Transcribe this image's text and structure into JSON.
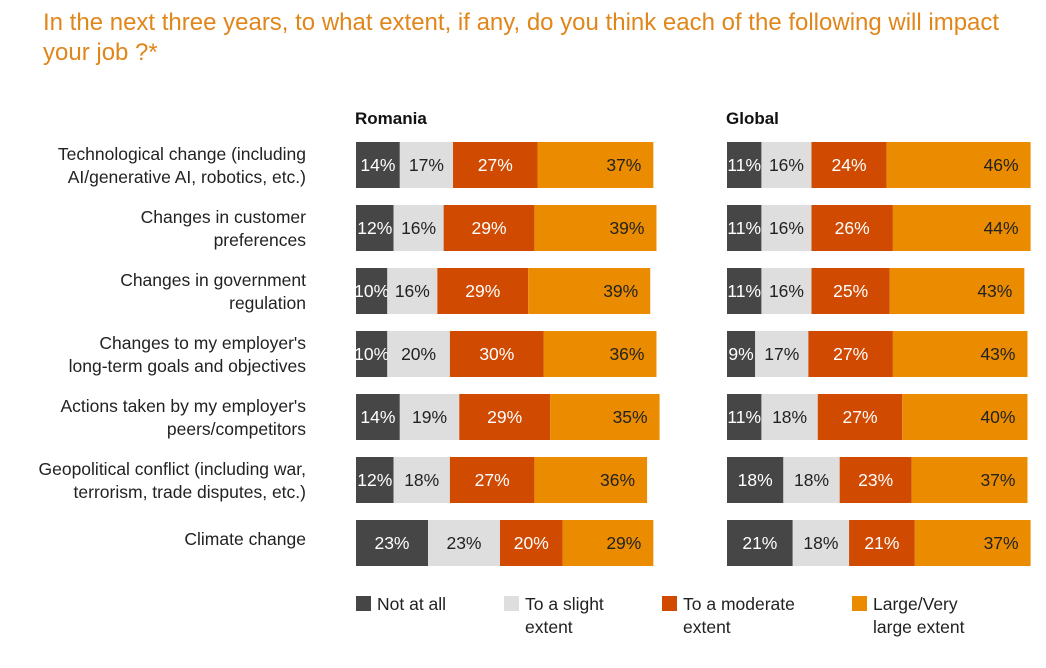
{
  "chart_data": {
    "type": "bar",
    "orientation": "horizontal-stacked",
    "title": "In the next three years, to what extent, if any, do you think each of the following will impact your job ?*",
    "categories": [
      "Technological change (including AI/generative AI, robotics, etc.)",
      "Changes in customer preferences",
      "Changes in government regulation",
      "Changes to my employer's long-term goals and objectives",
      "Actions taken by my employer's peers/competitors",
      "Geopolitical conflict (including war, terrorism, trade disputes, etc.)",
      "Climate change"
    ],
    "category_lines": [
      [
        "Technological change (including",
        "AI/generative AI, robotics, etc.)"
      ],
      [
        "Changes in customer",
        "preferences"
      ],
      [
        "Changes in government",
        "regulation"
      ],
      [
        "Changes to my employer's",
        "long-term goals and objectives"
      ],
      [
        "Actions taken by my employer's",
        "peers/competitors"
      ],
      [
        "Geopolitical conflict (including war,",
        "terrorism, trade disputes, etc.)"
      ],
      [
        "Climate change"
      ]
    ],
    "unit": "%",
    "legend": [
      {
        "name": "Not at all",
        "lines": [
          "Not at all"
        ],
        "color": "#464646",
        "text_color": "#ffffff"
      },
      {
        "name": "To a slight extent",
        "lines": [
          "To a slight",
          "extent"
        ],
        "color": "#dedede",
        "text_color": "#222222"
      },
      {
        "name": "To a moderate extent",
        "lines": [
          "To a moderate",
          "extent"
        ],
        "color": "#d04a02",
        "text_color": "#ffffff"
      },
      {
        "name": "Large/Very large extent",
        "lines": [
          "Large/Very",
          "large extent"
        ],
        "color": "#eb8c00",
        "text_color": "#222222"
      }
    ],
    "legend_position": "bottom",
    "panels": [
      {
        "name": "Romania",
        "series": [
          {
            "name": "Not at all",
            "values": [
              14,
              12,
              10,
              10,
              14,
              12,
              23
            ]
          },
          {
            "name": "To a slight extent",
            "values": [
              17,
              16,
              16,
              20,
              19,
              18,
              23
            ]
          },
          {
            "name": "To a moderate extent",
            "values": [
              27,
              29,
              29,
              30,
              29,
              27,
              20
            ]
          },
          {
            "name": "Large/Very large extent",
            "values": [
              37,
              39,
              39,
              36,
              35,
              36,
              29
            ]
          }
        ]
      },
      {
        "name": "Global",
        "series": [
          {
            "name": "Not at all",
            "values": [
              11,
              11,
              11,
              9,
              11,
              18,
              21
            ]
          },
          {
            "name": "To a slight extent",
            "values": [
              16,
              16,
              16,
              17,
              18,
              18,
              18
            ]
          },
          {
            "name": "To a moderate extent",
            "values": [
              24,
              26,
              25,
              27,
              27,
              23,
              21
            ]
          },
          {
            "name": "Large/Very large extent",
            "values": [
              46,
              44,
              43,
              43,
              40,
              37,
              37
            ]
          }
        ]
      }
    ]
  }
}
